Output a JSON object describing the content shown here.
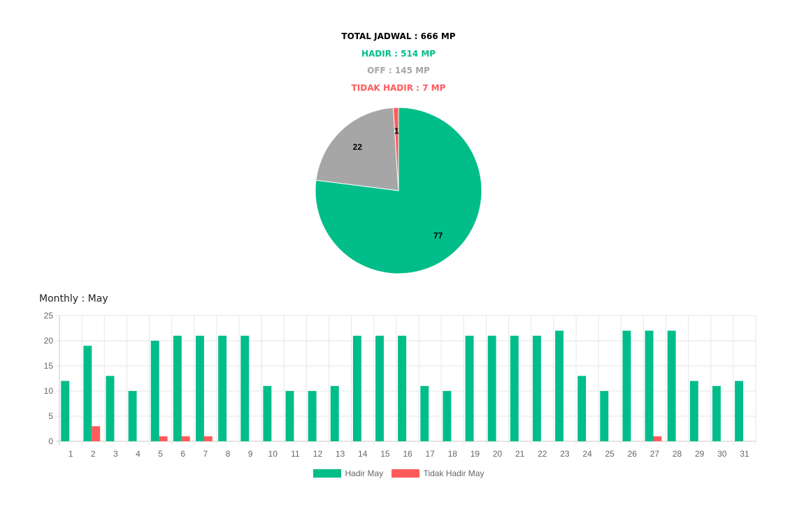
{
  "summary": {
    "total": "TOTAL JADWAL : 666 MP",
    "hadir": "HADIR : 514 MP",
    "off": "OFF : 145 MP",
    "tidak_hadir": "TIDAK HADIR : 7 MP"
  },
  "colors": {
    "hadir": "#00BD8A",
    "off": "#A6A6A6",
    "tidak_hadir": "#FF5B5B",
    "total": "#000000"
  },
  "chart_data": [
    {
      "type": "pie",
      "slices": [
        {
          "label": "77",
          "value": 77,
          "color": "#00BD8A"
        },
        {
          "label": "22",
          "value": 22,
          "color": "#A6A6A6"
        },
        {
          "label": "1",
          "value": 1,
          "color": "#FF5B5B"
        }
      ]
    },
    {
      "type": "bar",
      "title": "Monthly : May",
      "categories": [
        "1",
        "2",
        "3",
        "4",
        "5",
        "6",
        "7",
        "8",
        "9",
        "10",
        "11",
        "12",
        "13",
        "14",
        "15",
        "16",
        "17",
        "18",
        "19",
        "20",
        "21",
        "22",
        "23",
        "24",
        "25",
        "26",
        "27",
        "28",
        "29",
        "30",
        "31"
      ],
      "series": [
        {
          "name": "Hadir May",
          "color": "#00BD8A",
          "values": [
            12,
            19,
            13,
            10,
            20,
            21,
            21,
            21,
            21,
            11,
            10,
            10,
            11,
            21,
            21,
            21,
            11,
            10,
            21,
            21,
            21,
            21,
            22,
            13,
            10,
            22,
            22,
            22,
            12,
            11,
            12
          ]
        },
        {
          "name": "Tidak Hadir May",
          "color": "#FF5B5B",
          "values": [
            0,
            3,
            0,
            0,
            1,
            1,
            1,
            0,
            0,
            0,
            0,
            0,
            0,
            0,
            0,
            0,
            0,
            0,
            0,
            0,
            0,
            0,
            0,
            0,
            0,
            0,
            1,
            0,
            0,
            0,
            0
          ]
        }
      ],
      "ylim": [
        0,
        25
      ],
      "yticks": [
        0,
        5,
        10,
        15,
        20,
        25
      ],
      "grid": true,
      "legend": "bottom"
    }
  ]
}
